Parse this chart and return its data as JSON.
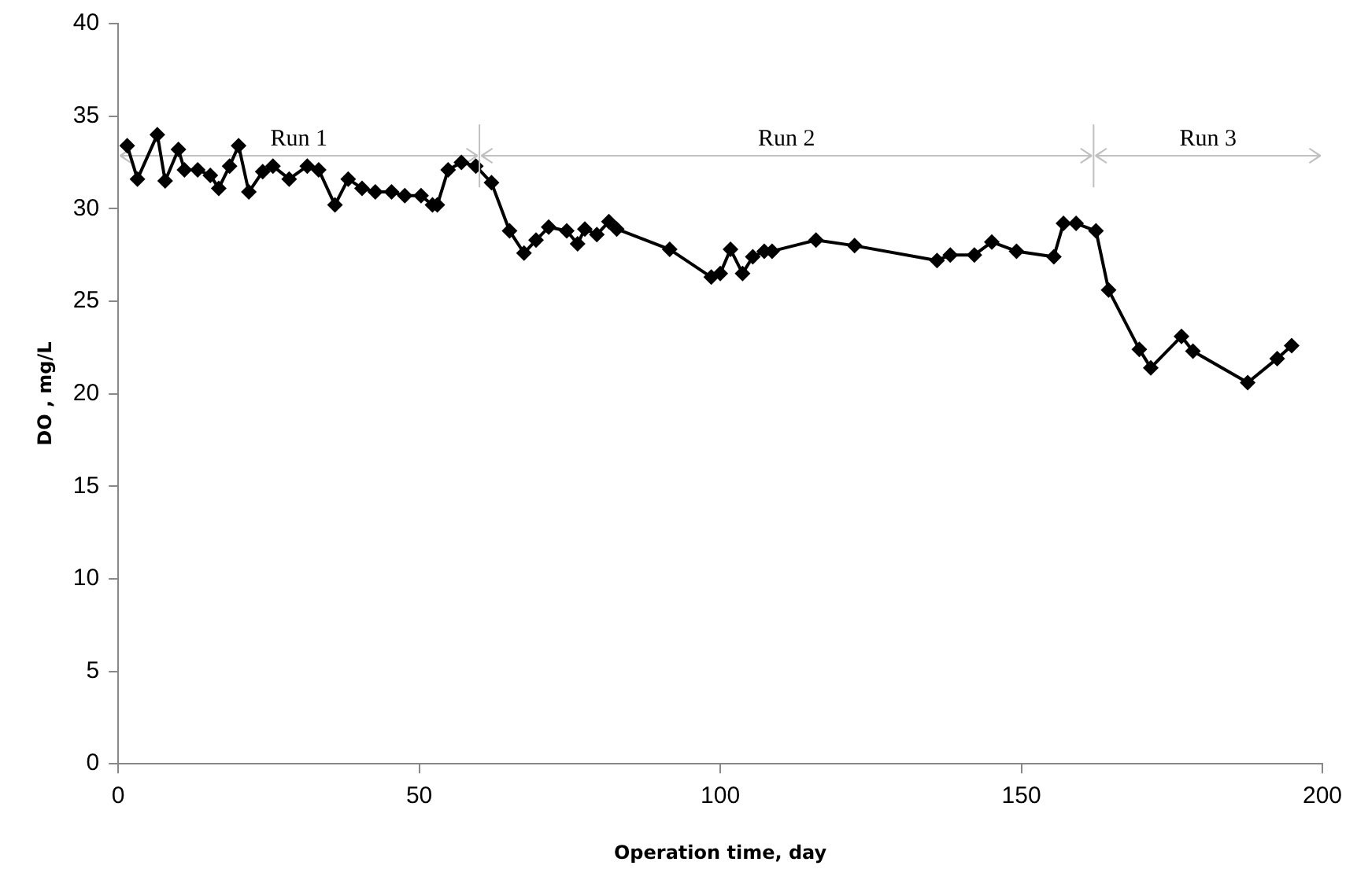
{
  "chart_data": {
    "type": "line",
    "xlabel": "Operation time, day",
    "ylabel": "DO , mg/L",
    "x": [
      1.5,
      3.2,
      6.5,
      7.8,
      10,
      11,
      13.2,
      15.3,
      16.7,
      18.5,
      20,
      21.7,
      24,
      25.7,
      28.4,
      31.4,
      33.3,
      36,
      38.2,
      40.5,
      42.7,
      45.4,
      47.6,
      50.3,
      52.2,
      53,
      54.8,
      57,
      59.4,
      62,
      65,
      67.4,
      69.4,
      71.5,
      74.5,
      76.3,
      77.5,
      79.5,
      81.5,
      82.8,
      91.6,
      98.5,
      100,
      101.7,
      103.7,
      105.4,
      107.3,
      108.6,
      115.9,
      122.3,
      136,
      138.2,
      142.2,
      145.1,
      149.2,
      155.4,
      157,
      159.1,
      162.4,
      164.5,
      169.6,
      171.5,
      176.6,
      178.5,
      187.6,
      192.5,
      194.9
    ],
    "series": [
      {
        "color": "#000000",
        "values": [
          33.4,
          31.6,
          34.0,
          31.5,
          33.2,
          32.1,
          32.1,
          31.8,
          31.1,
          32.3,
          33.4,
          30.9,
          32.0,
          32.3,
          31.6,
          32.3,
          32.1,
          30.2,
          31.6,
          31.1,
          30.9,
          30.9,
          30.7,
          30.7,
          30.2,
          30.2,
          32.1,
          32.5,
          32.3,
          31.4,
          28.8,
          27.6,
          28.3,
          29.0,
          28.8,
          28.1,
          28.9,
          28.6,
          29.3,
          28.9,
          27.8,
          26.3,
          26.5,
          27.8,
          26.5,
          27.4,
          27.7,
          27.7,
          28.3,
          28.0,
          27.2,
          27.5,
          27.5,
          28.2,
          27.7,
          27.4,
          29.2,
          29.2,
          28.8,
          25.6,
          22.4,
          21.4,
          23.1,
          22.3,
          20.6,
          21.9,
          22.6
        ]
      }
    ],
    "xlim": [
      0,
      200
    ],
    "xticks": [
      0,
      50,
      100,
      150,
      200
    ],
    "ylim": [
      0,
      40
    ],
    "yticks": [
      0,
      5,
      10,
      15,
      20,
      25,
      30,
      35,
      40
    ],
    "marker": "diamond",
    "line_style": "solid",
    "grid": false,
    "legend": false,
    "ref_lines": [
      {
        "axis": "x",
        "value": 60,
        "color": "#c0c0c0"
      },
      {
        "axis": "x",
        "value": 162,
        "color": "#c0c0c0"
      }
    ],
    "annotations": [
      "Run 1",
      "Run 2",
      "Run 3"
    ]
  }
}
